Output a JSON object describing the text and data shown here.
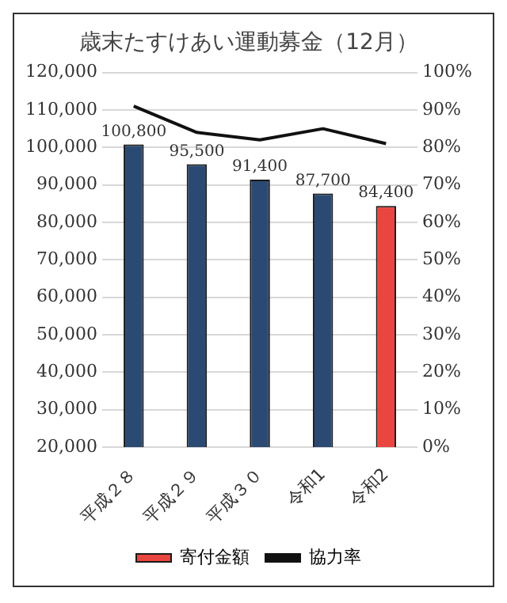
{
  "chart_data": {
    "type": "bar",
    "title": "歳末たすけあい運動募金（12月）",
    "categories": [
      "平成２８",
      "平成２９",
      "平成３０",
      "令和1",
      "令和2"
    ],
    "series": [
      {
        "name": "寄付金額",
        "color": "#e8463f",
        "colors": [
          "#2b4a73",
          "#2b4a73",
          "#2b4a73",
          "#2b4a73",
          "#e8463f"
        ],
        "values": [
          100800,
          95500,
          91400,
          87700,
          84400
        ],
        "value_labels": [
          "100,800",
          "95,500",
          "91,400",
          "87,700",
          "84,400"
        ]
      },
      {
        "name": "協力率",
        "type": "line",
        "axis": "y2",
        "color": "#111111",
        "values": [
          91,
          84,
          82,
          85,
          81
        ]
      }
    ],
    "ylim": [
      20000,
      120000
    ],
    "yticks": [
      {
        "value": 20000,
        "label": "20,000"
      },
      {
        "value": 30000,
        "label": "30,000"
      },
      {
        "value": 40000,
        "label": "40,000"
      },
      {
        "value": 50000,
        "label": "50,000"
      },
      {
        "value": 60000,
        "label": "60,000"
      },
      {
        "value": 70000,
        "label": "70,000"
      },
      {
        "value": 80000,
        "label": "80,000"
      },
      {
        "value": 90000,
        "label": "90,000"
      },
      {
        "value": 100000,
        "label": "100,000"
      },
      {
        "value": 110000,
        "label": "110,000"
      },
      {
        "value": 120000,
        "label": "120,000"
      }
    ],
    "y2lim": [
      0,
      100
    ],
    "y2ticks": [
      {
        "value": 0,
        "label": "0%"
      },
      {
        "value": 10,
        "label": "10%"
      },
      {
        "value": 20,
        "label": "20%"
      },
      {
        "value": 30,
        "label": "30%"
      },
      {
        "value": 40,
        "label": "40%"
      },
      {
        "value": 50,
        "label": "50%"
      },
      {
        "value": 60,
        "label": "60%"
      },
      {
        "value": 70,
        "label": "70%"
      },
      {
        "value": 80,
        "label": "80%"
      },
      {
        "value": 90,
        "label": "90%"
      },
      {
        "value": 100,
        "label": "100%"
      }
    ],
    "grid": "y",
    "legend": "bottom",
    "marker": "none",
    "line_style": "solid"
  }
}
